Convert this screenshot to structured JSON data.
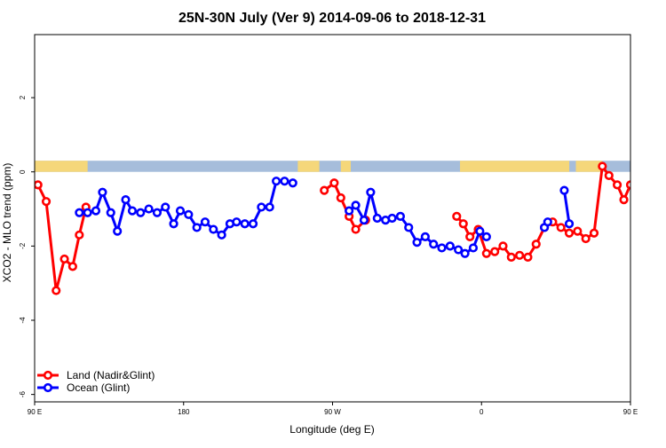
{
  "chart_data": {
    "type": "line",
    "title": "25N-30N July (Ver 9)   2014-09-06 to 2018-12-31",
    "xlabel": "Longitude (deg E)",
    "ylabel": "XCO2 - MLO trend (ppm)",
    "xlim": [
      90,
      450
    ],
    "ylim": [
      -6.2,
      3.7
    ],
    "x_ticks": [
      {
        "value": 90,
        "label": "90 E"
      },
      {
        "value": 180,
        "label": "180"
      },
      {
        "value": 270,
        "label": "90 W"
      },
      {
        "value": 360,
        "label": "0"
      },
      {
        "value": 450,
        "label": "90 E"
      },
      {
        "value": 540,
        "label": "180"
      }
    ],
    "y_ticks": [
      {
        "value": 2,
        "label": "2"
      },
      {
        "value": 0,
        "label": "0"
      },
      {
        "value": -2,
        "label": "-2"
      },
      {
        "value": -4,
        "label": "-4"
      },
      {
        "value": -6,
        "label": "-6"
      }
    ],
    "grid": false,
    "legend_position": "bottom-left",
    "surface_strip": {
      "y_range": [
        0,
        0.3
      ],
      "land_color": "#F5D77A",
      "ocean_color": "#A6BDDB",
      "land_segments": [
        [
          90,
          122
        ],
        [
          249,
          262
        ],
        [
          275,
          281
        ],
        [
          347,
          413
        ],
        [
          417,
          433
        ]
      ]
    },
    "series": [
      {
        "name": "Land (Nadir&Glint)",
        "color": "#FF0000",
        "segments": [
          [
            {
              "x": 92,
              "y": -0.35
            },
            {
              "x": 97,
              "y": -0.8
            },
            {
              "x": 103,
              "y": -3.2
            },
            {
              "x": 108,
              "y": -2.35
            },
            {
              "x": 113,
              "y": -2.55
            },
            {
              "x": 117,
              "y": -1.7
            },
            {
              "x": 121,
              "y": -0.95
            }
          ],
          [
            {
              "x": 265,
              "y": -0.5
            },
            {
              "x": 271,
              "y": -0.3
            },
            {
              "x": 275,
              "y": -0.7
            },
            {
              "x": 280,
              "y": -1.2
            },
            {
              "x": 284,
              "y": -1.55
            },
            {
              "x": 290,
              "y": -1.3
            }
          ],
          [
            {
              "x": 345,
              "y": -1.2
            },
            {
              "x": 349,
              "y": -1.4
            },
            {
              "x": 353,
              "y": -1.75
            },
            {
              "x": 358,
              "y": -1.55
            },
            {
              "x": 363,
              "y": -2.2
            },
            {
              "x": 368,
              "y": -2.15
            },
            {
              "x": 373,
              "y": -2.0
            },
            {
              "x": 378,
              "y": -2.3
            },
            {
              "x": 383,
              "y": -2.25
            },
            {
              "x": 388,
              "y": -2.3
            },
            {
              "x": 393,
              "y": -1.95
            },
            {
              "x": 398,
              "y": -1.5
            },
            {
              "x": 403,
              "y": -1.35
            },
            {
              "x": 408,
              "y": -1.5
            },
            {
              "x": 413,
              "y": -1.65
            },
            {
              "x": 418,
              "y": -1.6
            },
            {
              "x": 423,
              "y": -1.8
            },
            {
              "x": 428,
              "y": -1.65
            },
            {
              "x": 433,
              "y": 0.15
            },
            {
              "x": 437,
              "y": -0.1
            },
            {
              "x": 442,
              "y": -0.35
            },
            {
              "x": 446,
              "y": -0.75
            },
            {
              "x": 450,
              "y": -0.35
            },
            {
              "x": 455,
              "y": -0.8
            },
            {
              "x": 461,
              "y": -3.2
            },
            {
              "x": 466,
              "y": -2.35
            },
            {
              "x": 471,
              "y": -2.55
            },
            {
              "x": 475,
              "y": -1.7
            },
            {
              "x": 479,
              "y": -0.95
            }
          ]
        ]
      },
      {
        "name": "Ocean (Glint)",
        "color": "#0000FF",
        "segments": [
          [
            {
              "x": 117,
              "y": -1.1
            },
            {
              "x": 122,
              "y": -1.1
            },
            {
              "x": 127,
              "y": -1.05
            },
            {
              "x": 131,
              "y": -0.55
            },
            {
              "x": 136,
              "y": -1.1
            },
            {
              "x": 140,
              "y": -1.6
            },
            {
              "x": 145,
              "y": -0.75
            },
            {
              "x": 149,
              "y": -1.05
            },
            {
              "x": 154,
              "y": -1.1
            },
            {
              "x": 159,
              "y": -1.0
            },
            {
              "x": 164,
              "y": -1.1
            },
            {
              "x": 169,
              "y": -0.95
            },
            {
              "x": 174,
              "y": -1.4
            },
            {
              "x": 178,
              "y": -1.05
            },
            {
              "x": 183,
              "y": -1.15
            },
            {
              "x": 188,
              "y": -1.5
            },
            {
              "x": 193,
              "y": -1.35
            },
            {
              "x": 198,
              "y": -1.55
            },
            {
              "x": 203,
              "y": -1.7
            },
            {
              "x": 208,
              "y": -1.4
            },
            {
              "x": 212,
              "y": -1.35
            },
            {
              "x": 217,
              "y": -1.4
            },
            {
              "x": 222,
              "y": -1.4
            },
            {
              "x": 227,
              "y": -0.95
            },
            {
              "x": 232,
              "y": -0.95
            },
            {
              "x": 236,
              "y": -0.25
            },
            {
              "x": 241,
              "y": -0.25
            },
            {
              "x": 246,
              "y": -0.3
            }
          ],
          [
            {
              "x": 280,
              "y": -1.05
            },
            {
              "x": 284,
              "y": -0.9
            },
            {
              "x": 289,
              "y": -1.3
            },
            {
              "x": 293,
              "y": -0.55
            },
            {
              "x": 297,
              "y": -1.25
            },
            {
              "x": 302,
              "y": -1.3
            },
            {
              "x": 306,
              "y": -1.25
            },
            {
              "x": 311,
              "y": -1.2
            },
            {
              "x": 316,
              "y": -1.5
            },
            {
              "x": 321,
              "y": -1.9
            },
            {
              "x": 326,
              "y": -1.75
            },
            {
              "x": 331,
              "y": -1.95
            },
            {
              "x": 336,
              "y": -2.05
            },
            {
              "x": 341,
              "y": -2.0
            },
            {
              "x": 346,
              "y": -2.1
            },
            {
              "x": 350,
              "y": -2.2
            },
            {
              "x": 355,
              "y": -2.05
            },
            {
              "x": 359,
              "y": -1.6
            },
            {
              "x": 363,
              "y": -1.75
            }
          ],
          [
            {
              "x": 398,
              "y": -1.5
            },
            {
              "x": 400,
              "y": -1.35
            }
          ],
          [
            {
              "x": 410,
              "y": -0.5
            },
            {
              "x": 413,
              "y": -1.4
            }
          ],
          [
            {
              "x": 475,
              "y": -1.1
            },
            {
              "x": 480,
              "y": -1.1
            },
            {
              "x": 485,
              "y": -1.05
            },
            {
              "x": 489,
              "y": -0.55
            },
            {
              "x": 494,
              "y": -1.1
            },
            {
              "x": 498,
              "y": -1.6
            },
            {
              "x": 503,
              "y": -0.75
            },
            {
              "x": 507,
              "y": -1.05
            },
            {
              "x": 512,
              "y": -1.1
            },
            {
              "x": 517,
              "y": -1.0
            },
            {
              "x": 522,
              "y": -1.1
            },
            {
              "x": 527,
              "y": -0.95
            },
            {
              "x": 532,
              "y": -1.4
            }
          ]
        ]
      }
    ]
  }
}
